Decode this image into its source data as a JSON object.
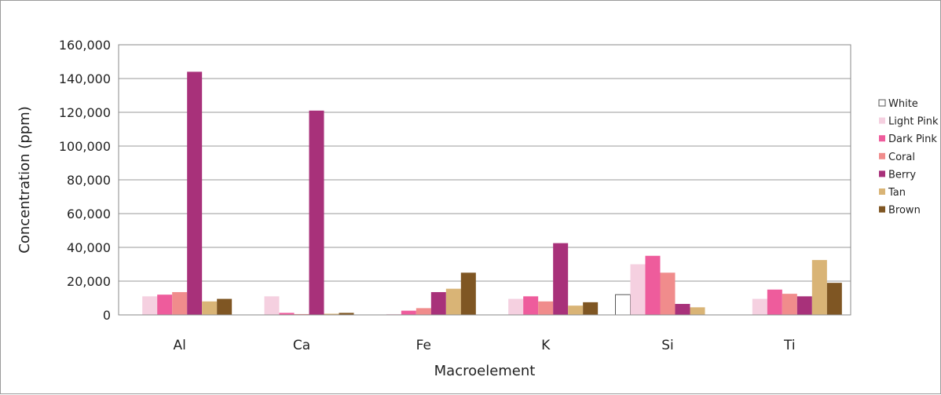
{
  "chart_data": {
    "type": "bar",
    "title": "",
    "xlabel": "Macroelement",
    "ylabel": "Concentration (ppm)",
    "ylim": [
      0,
      160000
    ],
    "yticks": [
      0,
      20000,
      40000,
      60000,
      80000,
      100000,
      120000,
      140000,
      160000
    ],
    "ytick_labels": [
      "0",
      "20,000",
      "40,000",
      "60,000",
      "80,000",
      "100,000",
      "120,000",
      "140,000",
      "160,000"
    ],
    "grid": true,
    "legend_position": "right",
    "categories": [
      "Al",
      "Ca",
      "Fe",
      "K",
      "Si",
      "Ti"
    ],
    "series": [
      {
        "name": "White",
        "color": "#ffffff",
        "stroke": "#555555",
        "values": [
          0,
          0,
          0,
          0,
          12000,
          0
        ]
      },
      {
        "name": "Light Pink",
        "color": "#f5d0e0",
        "values": [
          11000,
          11000,
          500,
          9500,
          30000,
          9500
        ]
      },
      {
        "name": "Dark Pink",
        "color": "#ee5c9c",
        "values": [
          12000,
          1200,
          2500,
          11000,
          35000,
          15000
        ]
      },
      {
        "name": "Coral",
        "color": "#f08c8c",
        "values": [
          13500,
          500,
          4000,
          8000,
          25000,
          12500
        ]
      },
      {
        "name": "Berry",
        "color": "#a8317a",
        "values": [
          144000,
          121000,
          13500,
          42500,
          6500,
          11000
        ]
      },
      {
        "name": "Tan",
        "color": "#d9b476",
        "values": [
          8000,
          700,
          15500,
          5500,
          4500,
          32500
        ]
      },
      {
        "name": "Brown",
        "color": "#7f5623",
        "values": [
          9500,
          1200,
          25000,
          7500,
          0,
          19000
        ]
      }
    ]
  }
}
